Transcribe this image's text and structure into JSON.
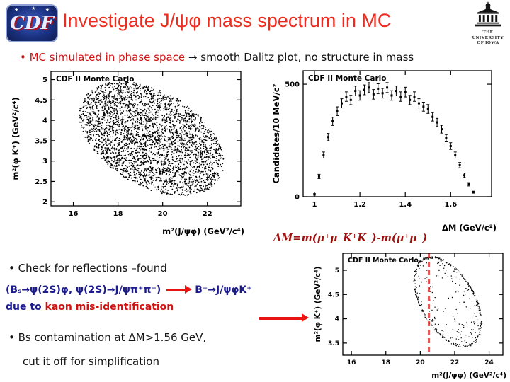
{
  "slide": {
    "title": "Investigate J/ψφ mass spectrum in MC"
  },
  "logos": {
    "cdf": "CDF",
    "iowa": {
      "line1": "THE",
      "line2": "UNIVERSITY",
      "line3": "OF IOWA"
    }
  },
  "bullets": {
    "b1_red": "• MC simulated  in phase space ",
    "b1_arrow": "→",
    "b1_rest": " smooth Dalitz plot, no structure in mass",
    "b2": "• Check for reflections –found",
    "b3_blue1": "(Bₛ→ψ(2S)φ, ψ(2S)→J/ψπ⁺π⁻)",
    "b3_blue2": "B⁺→J/ψφK⁺",
    "b4_blue": "due to ",
    "b4_red": "kaon mis-identification",
    "b5": "• Bs contamination at ΔM>1.56 GeV,",
    "b6": "cut it off for simplification"
  },
  "annotation": {
    "dm_equation": "ΔM=m(μ⁺μ⁻K⁺K⁻)-m(μ⁺μ⁻)"
  },
  "colors": {
    "title_red": "#ed2b1f",
    "text_blue": "#1b1b8e",
    "text_red": "#cf1212",
    "equation_red": "#a01010",
    "cut_line_red": "#e02020"
  },
  "chart_data": [
    {
      "id": "dalitz-full",
      "type": "scatter",
      "title": "CDF II Monte Carlo",
      "xlabel": "m²(J/ψφ)  (GeV²/c⁴)",
      "ylabel": "m²(φ K⁺)  (GeV²/c⁴)",
      "xlim": [
        15,
        23.5
      ],
      "ylim": [
        1.9,
        5.2
      ],
      "xtick_vals": [
        16,
        18,
        20,
        22
      ],
      "xtick_labels": [
        "16",
        "18",
        "20",
        "22"
      ],
      "ytick_vals": [
        2,
        2.5,
        3,
        3.5,
        4,
        4.5,
        5
      ],
      "ytick_labels": [
        "2",
        "2.5",
        "3",
        "3.5",
        "4",
        "4.5",
        "5"
      ],
      "grid": false,
      "legend": "none",
      "distribution": {
        "shape": "filled-ellipse",
        "cx": 19.5,
        "cy": 3.55,
        "rx": 3.3,
        "ry": 1.25,
        "tilt_deg": -12,
        "n_points": 3000,
        "point_r": 0.9,
        "seed": 7
      }
    },
    {
      "id": "dm-hist",
      "type": "errorbar-hist",
      "title": "CDF II Monte Carlo",
      "xlabel": "ΔM  (GeV/c²)",
      "ylabel": "Candidates/10 MeV/c²",
      "xlim": [
        0.95,
        1.78
      ],
      "ylim": [
        0,
        560
      ],
      "xtick_vals": [
        1,
        1.2,
        1.4,
        1.6
      ],
      "xtick_labels": [
        "1",
        "1.2",
        "1.4",
        "1.6"
      ],
      "ytick_vals": [
        0,
        500
      ],
      "ytick_labels": [
        "0",
        "500"
      ],
      "grid": false,
      "legend": "none",
      "x": [
        1.0,
        1.02,
        1.04,
        1.06,
        1.08,
        1.1,
        1.12,
        1.14,
        1.16,
        1.18,
        1.2,
        1.22,
        1.24,
        1.26,
        1.28,
        1.3,
        1.32,
        1.34,
        1.36,
        1.38,
        1.4,
        1.42,
        1.44,
        1.46,
        1.48,
        1.5,
        1.52,
        1.54,
        1.56,
        1.58,
        1.6,
        1.62,
        1.64,
        1.66,
        1.68,
        1.7
      ],
      "y": [
        10,
        90,
        185,
        265,
        335,
        380,
        415,
        445,
        430,
        470,
        450,
        475,
        485,
        455,
        480,
        460,
        485,
        450,
        470,
        445,
        465,
        430,
        445,
        415,
        400,
        390,
        355,
        330,
        300,
        260,
        225,
        185,
        140,
        95,
        55,
        20
      ]
    },
    {
      "id": "dalitz-cut",
      "type": "scatter",
      "title": "CDF II Monte Carlo",
      "xlabel": "m²(J/ψφ)  (GeV²/c⁴)",
      "ylabel": "m²(φ K⁺)  (GeV²/c⁴)",
      "xlim": [
        15.5,
        24.8
      ],
      "ylim": [
        3.25,
        5.35
      ],
      "xtick_vals": [
        16,
        18,
        20,
        22,
        24
      ],
      "xtick_labels": [
        "16",
        "18",
        "20",
        "22",
        "24"
      ],
      "ytick_vals": [
        3.5,
        4,
        4.5,
        5
      ],
      "ytick_labels": [
        "3.5",
        "4",
        "4.5",
        "5"
      ],
      "grid": false,
      "legend": "none",
      "distribution": {
        "shape": "ring-ellipse",
        "cx": 21.6,
        "cy": 4.35,
        "rx": 2.0,
        "ry": 0.78,
        "tilt_deg": -15,
        "n_boundary": 320,
        "n_inner": 170,
        "point_r": 0.7,
        "seed": 11
      },
      "cut_line": {
        "x": 20.5,
        "color": "#e02020",
        "style": "dashed"
      }
    }
  ]
}
